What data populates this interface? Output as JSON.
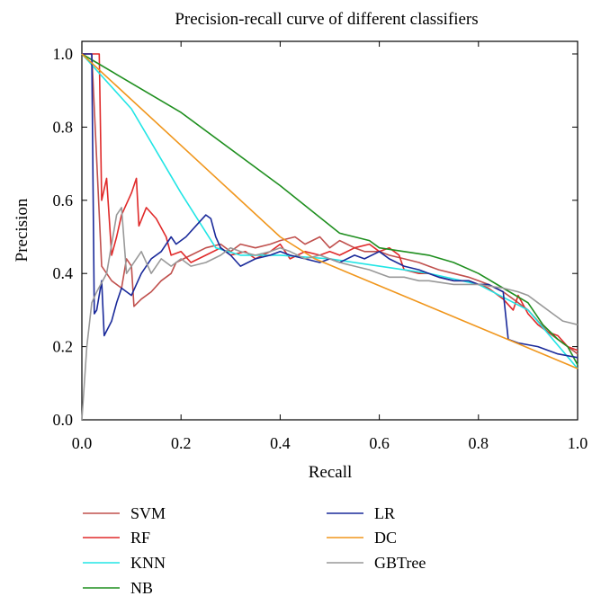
{
  "chart_data": {
    "type": "line",
    "title": "Precision-recall curve of different classifiers",
    "xlabel": "Recall",
    "ylabel": "Precision",
    "xlim": [
      0,
      1
    ],
    "ylim": [
      0,
      1.05
    ],
    "xticks": [
      "0.0",
      "0.2",
      "0.4",
      "0.6",
      "0.8",
      "1.0"
    ],
    "yticks": [
      "0.0",
      "0.2",
      "0.4",
      "0.6",
      "0.8",
      "1.0"
    ],
    "grid": false,
    "legend_position": "below",
    "series": [
      {
        "name": "SVM",
        "color": "#c0504d",
        "points": [
          [
            0.0,
            1.0
          ],
          [
            0.02,
            1.0
          ],
          [
            0.04,
            0.42
          ],
          [
            0.06,
            0.38
          ],
          [
            0.08,
            0.36
          ],
          [
            0.09,
            0.44
          ],
          [
            0.1,
            0.42
          ],
          [
            0.105,
            0.31
          ],
          [
            0.12,
            0.33
          ],
          [
            0.14,
            0.35
          ],
          [
            0.16,
            0.38
          ],
          [
            0.18,
            0.4
          ],
          [
            0.19,
            0.43
          ],
          [
            0.22,
            0.45
          ],
          [
            0.25,
            0.47
          ],
          [
            0.28,
            0.48
          ],
          [
            0.3,
            0.46
          ],
          [
            0.32,
            0.48
          ],
          [
            0.35,
            0.47
          ],
          [
            0.38,
            0.48
          ],
          [
            0.4,
            0.49
          ],
          [
            0.43,
            0.5
          ],
          [
            0.45,
            0.48
          ],
          [
            0.48,
            0.5
          ],
          [
            0.5,
            0.47
          ],
          [
            0.52,
            0.49
          ],
          [
            0.55,
            0.47
          ],
          [
            0.57,
            0.46
          ],
          [
            0.6,
            0.46
          ],
          [
            0.62,
            0.45
          ],
          [
            0.65,
            0.44
          ],
          [
            0.68,
            0.43
          ],
          [
            0.7,
            0.42
          ],
          [
            0.72,
            0.41
          ],
          [
            0.75,
            0.4
          ],
          [
            0.78,
            0.39
          ],
          [
            0.8,
            0.38
          ],
          [
            0.82,
            0.37
          ],
          [
            0.85,
            0.35
          ],
          [
            0.87,
            0.33
          ],
          [
            0.9,
            0.3
          ],
          [
            0.92,
            0.27
          ],
          [
            0.94,
            0.24
          ],
          [
            0.96,
            0.22
          ],
          [
            0.98,
            0.2
          ],
          [
            1.0,
            0.18
          ]
        ]
      },
      {
        "name": "RF",
        "color": "#e02a2a",
        "points": [
          [
            0.0,
            1.0
          ],
          [
            0.035,
            1.0
          ],
          [
            0.04,
            0.6
          ],
          [
            0.05,
            0.66
          ],
          [
            0.06,
            0.45
          ],
          [
            0.07,
            0.5
          ],
          [
            0.08,
            0.56
          ],
          [
            0.1,
            0.62
          ],
          [
            0.11,
            0.66
          ],
          [
            0.115,
            0.53
          ],
          [
            0.13,
            0.58
          ],
          [
            0.15,
            0.55
          ],
          [
            0.17,
            0.5
          ],
          [
            0.18,
            0.45
          ],
          [
            0.2,
            0.46
          ],
          [
            0.22,
            0.43
          ],
          [
            0.25,
            0.45
          ],
          [
            0.28,
            0.47
          ],
          [
            0.3,
            0.45
          ],
          [
            0.33,
            0.46
          ],
          [
            0.35,
            0.44
          ],
          [
            0.38,
            0.46
          ],
          [
            0.4,
            0.48
          ],
          [
            0.42,
            0.44
          ],
          [
            0.45,
            0.46
          ],
          [
            0.48,
            0.45
          ],
          [
            0.5,
            0.46
          ],
          [
            0.52,
            0.45
          ],
          [
            0.55,
            0.47
          ],
          [
            0.58,
            0.48
          ],
          [
            0.6,
            0.46
          ],
          [
            0.62,
            0.47
          ],
          [
            0.64,
            0.45
          ],
          [
            0.65,
            0.41
          ],
          [
            0.68,
            0.4
          ],
          [
            0.7,
            0.4
          ],
          [
            0.72,
            0.39
          ],
          [
            0.75,
            0.38
          ],
          [
            0.78,
            0.38
          ],
          [
            0.8,
            0.37
          ],
          [
            0.82,
            0.36
          ],
          [
            0.85,
            0.33
          ],
          [
            0.87,
            0.3
          ],
          [
            0.88,
            0.34
          ],
          [
            0.9,
            0.29
          ],
          [
            0.92,
            0.26
          ],
          [
            0.94,
            0.24
          ],
          [
            0.96,
            0.23
          ],
          [
            0.98,
            0.2
          ],
          [
            1.0,
            0.19
          ]
        ]
      },
      {
        "name": "KNN",
        "color": "#22e5e5",
        "points": [
          [
            0.0,
            1.0
          ],
          [
            0.1,
            0.85
          ],
          [
            0.2,
            0.62
          ],
          [
            0.27,
            0.47
          ],
          [
            0.32,
            0.45
          ],
          [
            0.4,
            0.45
          ],
          [
            0.5,
            0.44
          ],
          [
            0.6,
            0.42
          ],
          [
            0.7,
            0.4
          ],
          [
            0.8,
            0.37
          ],
          [
            0.9,
            0.3
          ],
          [
            1.0,
            0.14
          ]
        ]
      },
      {
        "name": "NB",
        "color": "#1f8f1f",
        "points": [
          [
            0.0,
            1.0
          ],
          [
            0.2,
            0.84
          ],
          [
            0.4,
            0.64
          ],
          [
            0.52,
            0.51
          ],
          [
            0.55,
            0.5
          ],
          [
            0.58,
            0.49
          ],
          [
            0.6,
            0.47
          ],
          [
            0.65,
            0.46
          ],
          [
            0.7,
            0.45
          ],
          [
            0.75,
            0.43
          ],
          [
            0.8,
            0.4
          ],
          [
            0.85,
            0.36
          ],
          [
            0.9,
            0.32
          ],
          [
            0.93,
            0.26
          ],
          [
            0.96,
            0.22
          ],
          [
            0.98,
            0.2
          ],
          [
            1.0,
            0.15
          ]
        ]
      },
      {
        "name": "LR",
        "color": "#1a2a9a",
        "points": [
          [
            0.0,
            1.0
          ],
          [
            0.02,
            1.0
          ],
          [
            0.025,
            0.29
          ],
          [
            0.03,
            0.3
          ],
          [
            0.04,
            0.38
          ],
          [
            0.045,
            0.23
          ],
          [
            0.06,
            0.27
          ],
          [
            0.07,
            0.32
          ],
          [
            0.08,
            0.36
          ],
          [
            0.1,
            0.34
          ],
          [
            0.12,
            0.4
          ],
          [
            0.14,
            0.44
          ],
          [
            0.16,
            0.46
          ],
          [
            0.18,
            0.5
          ],
          [
            0.19,
            0.48
          ],
          [
            0.21,
            0.5
          ],
          [
            0.23,
            0.53
          ],
          [
            0.25,
            0.56
          ],
          [
            0.26,
            0.55
          ],
          [
            0.27,
            0.5
          ],
          [
            0.28,
            0.47
          ],
          [
            0.3,
            0.45
          ],
          [
            0.32,
            0.42
          ],
          [
            0.35,
            0.44
          ],
          [
            0.38,
            0.45
          ],
          [
            0.4,
            0.46
          ],
          [
            0.42,
            0.45
          ],
          [
            0.45,
            0.44
          ],
          [
            0.48,
            0.43
          ],
          [
            0.5,
            0.44
          ],
          [
            0.52,
            0.43
          ],
          [
            0.55,
            0.45
          ],
          [
            0.57,
            0.44
          ],
          [
            0.6,
            0.46
          ],
          [
            0.62,
            0.44
          ],
          [
            0.65,
            0.42
          ],
          [
            0.68,
            0.41
          ],
          [
            0.7,
            0.4
          ],
          [
            0.72,
            0.39
          ],
          [
            0.75,
            0.38
          ],
          [
            0.78,
            0.38
          ],
          [
            0.8,
            0.37
          ],
          [
            0.82,
            0.37
          ],
          [
            0.85,
            0.35
          ],
          [
            0.86,
            0.22
          ],
          [
            0.88,
            0.21
          ],
          [
            0.92,
            0.2
          ],
          [
            0.96,
            0.18
          ],
          [
            1.0,
            0.17
          ]
        ]
      },
      {
        "name": "DC",
        "color": "#f0961c",
        "points": [
          [
            0.0,
            1.0
          ],
          [
            0.4,
            0.5
          ],
          [
            0.47,
            0.44
          ],
          [
            1.0,
            0.14
          ]
        ]
      },
      {
        "name": "GBTree",
        "color": "#999999",
        "points": [
          [
            0.0,
            0.0
          ],
          [
            0.01,
            0.2
          ],
          [
            0.02,
            0.32
          ],
          [
            0.03,
            0.35
          ],
          [
            0.05,
            0.4
          ],
          [
            0.06,
            0.48
          ],
          [
            0.07,
            0.56
          ],
          [
            0.08,
            0.58
          ],
          [
            0.09,
            0.4
          ],
          [
            0.1,
            0.42
          ],
          [
            0.12,
            0.46
          ],
          [
            0.14,
            0.4
          ],
          [
            0.16,
            0.44
          ],
          [
            0.18,
            0.42
          ],
          [
            0.2,
            0.44
          ],
          [
            0.22,
            0.42
          ],
          [
            0.25,
            0.43
          ],
          [
            0.28,
            0.45
          ],
          [
            0.3,
            0.47
          ],
          [
            0.32,
            0.46
          ],
          [
            0.35,
            0.45
          ],
          [
            0.38,
            0.46
          ],
          [
            0.4,
            0.47
          ],
          [
            0.42,
            0.46
          ],
          [
            0.45,
            0.44
          ],
          [
            0.48,
            0.45
          ],
          [
            0.5,
            0.44
          ],
          [
            0.52,
            0.43
          ],
          [
            0.55,
            0.42
          ],
          [
            0.58,
            0.41
          ],
          [
            0.6,
            0.4
          ],
          [
            0.62,
            0.39
          ],
          [
            0.65,
            0.39
          ],
          [
            0.68,
            0.38
          ],
          [
            0.7,
            0.38
          ],
          [
            0.75,
            0.37
          ],
          [
            0.8,
            0.37
          ],
          [
            0.85,
            0.36
          ],
          [
            0.88,
            0.35
          ],
          [
            0.9,
            0.34
          ],
          [
            0.92,
            0.32
          ],
          [
            0.95,
            0.29
          ],
          [
            0.97,
            0.27
          ],
          [
            1.0,
            0.26
          ]
        ]
      }
    ]
  }
}
